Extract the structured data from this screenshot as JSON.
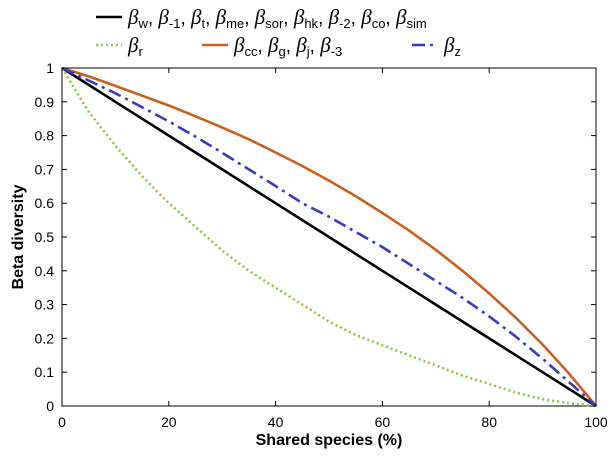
{
  "chart_data": {
    "type": "line",
    "title": "",
    "xlabel": "Shared species (%)",
    "ylabel": "Beta diversity",
    "xlim": [
      0,
      100
    ],
    "ylim": [
      0,
      1
    ],
    "xticks": [
      0,
      20,
      40,
      60,
      80,
      100
    ],
    "yticks": [
      0,
      0.1,
      0.2,
      0.3,
      0.4,
      0.5,
      0.6,
      0.7,
      0.8,
      0.9,
      1
    ],
    "grid": false,
    "legend_position": "top",
    "x": [
      0,
      5,
      10,
      15,
      20,
      25,
      30,
      35,
      40,
      45,
      50,
      55,
      60,
      65,
      70,
      75,
      80,
      85,
      90,
      95,
      100
    ],
    "series": [
      {
        "name": "βw, β-1, βt, βme, βsor, βhk, β-2, βco, βsim",
        "legend_parts": [
          {
            "base": "β",
            "sub": "w",
            "sep": ", "
          },
          {
            "base": "β",
            "sub": "-1",
            "sep": ", "
          },
          {
            "base": "β",
            "sub": "t",
            "sep": ", "
          },
          {
            "base": "β",
            "sub": "me",
            "sep": ", "
          },
          {
            "base": "β",
            "sub": "sor",
            "sep": ", "
          },
          {
            "base": "β",
            "sub": "hk",
            "sep": ", "
          },
          {
            "base": "β",
            "sub": "-2",
            "sep": ", "
          },
          {
            "base": "β",
            "sub": "co",
            "sep": ", "
          },
          {
            "base": "β",
            "sub": "sim",
            "sep": ""
          }
        ],
        "color": "#000000",
        "style": "solid",
        "values": [
          1,
          0.95,
          0.9,
          0.85,
          0.8,
          0.75,
          0.7,
          0.65,
          0.6,
          0.55,
          0.5,
          0.45,
          0.4,
          0.35,
          0.3,
          0.25,
          0.2,
          0.15,
          0.1,
          0.05,
          0
        ]
      },
      {
        "name": "βr",
        "legend_parts": [
          {
            "base": "β",
            "sub": "r",
            "sep": ""
          }
        ],
        "color": "#8dc63f",
        "style": "dotted",
        "values": [
          1,
          0.87,
          0.77,
          0.68,
          0.6,
          0.53,
          0.46,
          0.4,
          0.35,
          0.3,
          0.25,
          0.21,
          0.18,
          0.15,
          0.12,
          0.09,
          0.065,
          0.04,
          0.02,
          0.008,
          0
        ]
      },
      {
        "name": "βcc, βg, βj, β-3",
        "legend_parts": [
          {
            "base": "β",
            "sub": "cc",
            "sep": ", "
          },
          {
            "base": "β",
            "sub": "g",
            "sep": ", "
          },
          {
            "base": "β",
            "sub": "j",
            "sep": ", "
          },
          {
            "base": "β",
            "sub": "-3",
            "sep": ""
          }
        ],
        "color": "#c8601e",
        "style": "solid",
        "values": [
          1,
          0.975,
          0.947,
          0.918,
          0.889,
          0.857,
          0.824,
          0.789,
          0.75,
          0.71,
          0.667,
          0.621,
          0.571,
          0.519,
          0.462,
          0.4,
          0.333,
          0.261,
          0.182,
          0.095,
          0
        ]
      },
      {
        "name": "βz",
        "legend_parts": [
          {
            "base": "β",
            "sub": "z",
            "sep": ""
          }
        ],
        "color": "#3b3bbf",
        "style": "dashdot",
        "values": [
          1,
          0.963,
          0.925,
          0.884,
          0.842,
          0.797,
          0.749,
          0.7,
          0.651,
          0.6,
          0.56,
          0.515,
          0.47,
          0.42,
          0.37,
          0.32,
          0.265,
          0.205,
          0.14,
          0.07,
          0
        ]
      }
    ]
  }
}
